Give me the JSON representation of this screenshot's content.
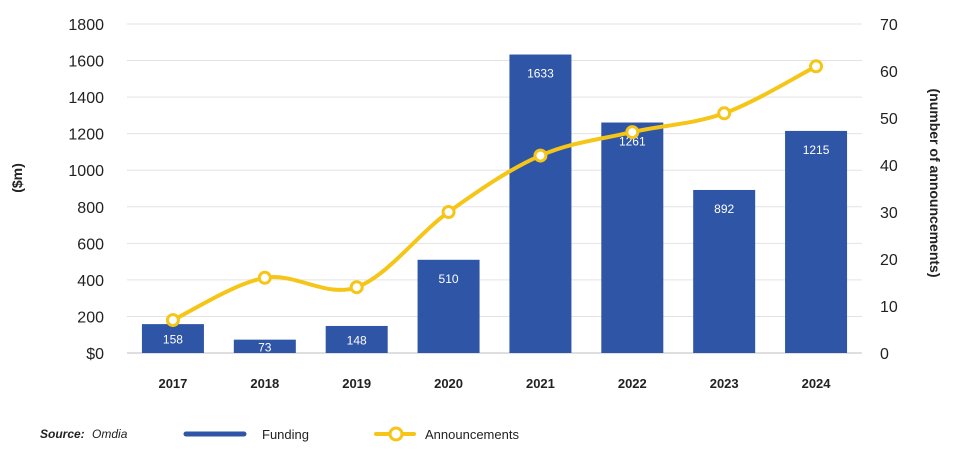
{
  "chart_data": {
    "type": "bar",
    "categories": [
      "2017",
      "2018",
      "2019",
      "2020",
      "2021",
      "2022",
      "2023",
      "2024"
    ],
    "series": [
      {
        "name": "Funding",
        "type": "bar",
        "axis": "left",
        "color": "#2E55A6",
        "values": [
          158,
          73,
          148,
          510,
          1633,
          1261,
          892,
          1215
        ],
        "show_labels": true
      },
      {
        "name": "Announcements",
        "type": "line",
        "axis": "right",
        "color": "#F5C518",
        "values": [
          7,
          16,
          14,
          30,
          42,
          47,
          51,
          61
        ]
      }
    ],
    "ylabel": "($m)",
    "ylabel_right": "(number of announcements)",
    "ylim": [
      0,
      1800
    ],
    "ylim_right": [
      0,
      70
    ],
    "yticks": [
      "$0",
      "200",
      "400",
      "600",
      "800",
      "1000",
      "1200",
      "1400",
      "1600",
      "1800"
    ],
    "yticks_right": [
      "0",
      "10",
      "20",
      "30",
      "40",
      "50",
      "60",
      "70"
    ],
    "grid": true,
    "legend_position": "bottom"
  },
  "source": {
    "label": "Source:",
    "name": "Omdia"
  }
}
